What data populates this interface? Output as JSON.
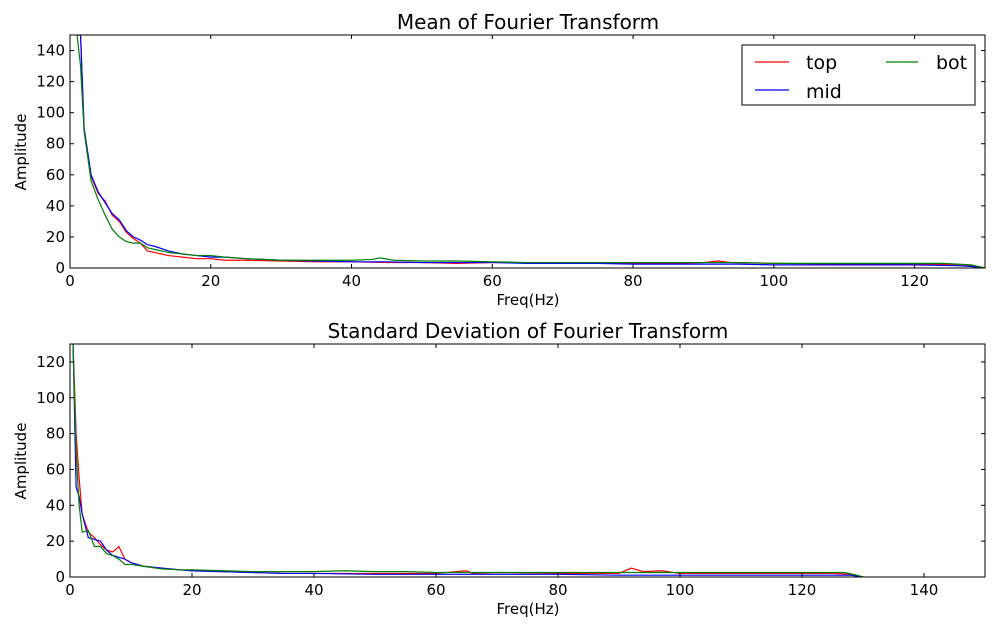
{
  "chart_data": [
    {
      "type": "line",
      "title": "Mean of Fourier Transform",
      "xlabel": "Freq(Hz)",
      "ylabel": "Amplitude",
      "xlim": [
        0,
        130
      ],
      "ylim": [
        0,
        150
      ],
      "xticks": [
        0,
        20,
        40,
        60,
        80,
        100,
        120
      ],
      "yticks": [
        0,
        20,
        40,
        60,
        80,
        100,
        120,
        140
      ],
      "grid": false,
      "legend": {
        "placement": "top-right",
        "columns": 2
      },
      "series": [
        {
          "name": "top",
          "color": "#ff0000",
          "points": [
            [
              1,
              150
            ],
            [
              1.5,
              150
            ],
            [
              2,
              90
            ],
            [
              3,
              59
            ],
            [
              4,
              48
            ],
            [
              5,
              43
            ],
            [
              6,
              34
            ],
            [
              7,
              30
            ],
            [
              8,
              23
            ],
            [
              9,
              19
            ],
            [
              10,
              16
            ],
            [
              11,
              11
            ],
            [
              12,
              10
            ],
            [
              14,
              8
            ],
            [
              16,
              7
            ],
            [
              18,
              6
            ],
            [
              20,
              6
            ],
            [
              22,
              5
            ],
            [
              25,
              5
            ],
            [
              30,
              4.5
            ],
            [
              35,
              4
            ],
            [
              40,
              4
            ],
            [
              45,
              3.5
            ],
            [
              50,
              3.5
            ],
            [
              55,
              3
            ],
            [
              60,
              3.5
            ],
            [
              65,
              3.5
            ],
            [
              70,
              3
            ],
            [
              75,
              3.5
            ],
            [
              80,
              3
            ],
            [
              85,
              3
            ],
            [
              90,
              3.5
            ],
            [
              92,
              4.5
            ],
            [
              94,
              3.5
            ],
            [
              100,
              3
            ],
            [
              110,
              2.5
            ],
            [
              120,
              2.5
            ],
            [
              126,
              2
            ],
            [
              128,
              1.5
            ],
            [
              130,
              0
            ]
          ]
        },
        {
          "name": "mid",
          "color": "#0000ff",
          "points": [
            [
              1,
              150
            ],
            [
              1.5,
              150
            ],
            [
              2,
              90
            ],
            [
              3,
              60
            ],
            [
              4,
              49
            ],
            [
              5,
              42
            ],
            [
              6,
              35
            ],
            [
              7,
              31
            ],
            [
              8,
              24
            ],
            [
              9,
              20
            ],
            [
              10,
              18
            ],
            [
              11,
              15
            ],
            [
              12,
              14
            ],
            [
              14,
              11
            ],
            [
              16,
              9
            ],
            [
              18,
              8
            ],
            [
              20,
              7
            ],
            [
              22,
              7
            ],
            [
              25,
              6
            ],
            [
              30,
              5
            ],
            [
              35,
              4.5
            ],
            [
              40,
              4
            ],
            [
              45,
              4
            ],
            [
              50,
              3.5
            ],
            [
              55,
              3.5
            ],
            [
              60,
              3.5
            ],
            [
              65,
              3
            ],
            [
              70,
              3
            ],
            [
              75,
              3
            ],
            [
              80,
              2.5
            ],
            [
              85,
              2.5
            ],
            [
              90,
              2.5
            ],
            [
              95,
              2.5
            ],
            [
              100,
              2
            ],
            [
              110,
              2
            ],
            [
              120,
              2
            ],
            [
              126,
              1.5
            ],
            [
              128,
              1
            ],
            [
              130,
              0
            ]
          ]
        },
        {
          "name": "bot",
          "color": "#008000",
          "points": [
            [
              1,
              150
            ],
            [
              1.5,
              130
            ],
            [
              2,
              88
            ],
            [
              3,
              56
            ],
            [
              4,
              44
            ],
            [
              5,
              34
            ],
            [
              6,
              25
            ],
            [
              7,
              20
            ],
            [
              8,
              17
            ],
            [
              9,
              16
            ],
            [
              10,
              16
            ],
            [
              11,
              13
            ],
            [
              12,
              12
            ],
            [
              14,
              10
            ],
            [
              16,
              9
            ],
            [
              18,
              8
            ],
            [
              20,
              8
            ],
            [
              22,
              7
            ],
            [
              25,
              6
            ],
            [
              30,
              5
            ],
            [
              35,
              5
            ],
            [
              40,
              5
            ],
            [
              43,
              5.5
            ],
            [
              44,
              6.5
            ],
            [
              46,
              5
            ],
            [
              50,
              4.5
            ],
            [
              55,
              4.5
            ],
            [
              60,
              4
            ],
            [
              65,
              3.5
            ],
            [
              70,
              3.5
            ],
            [
              75,
              3.5
            ],
            [
              80,
              3.5
            ],
            [
              85,
              3.5
            ],
            [
              90,
              3.5
            ],
            [
              95,
              3.5
            ],
            [
              100,
              3
            ],
            [
              110,
              3
            ],
            [
              120,
              3
            ],
            [
              124,
              3
            ],
            [
              126,
              2.5
            ],
            [
              128,
              2
            ],
            [
              130,
              0
            ]
          ]
        }
      ]
    },
    {
      "type": "line",
      "title": "Standard Deviation of Fourier Transform",
      "xlabel": "Freq(Hz)",
      "ylabel": "Amplitude",
      "xlim": [
        0,
        150
      ],
      "ylim": [
        0,
        130
      ],
      "xticks": [
        0,
        20,
        40,
        60,
        80,
        100,
        120,
        140
      ],
      "yticks": [
        0,
        20,
        40,
        60,
        80,
        100,
        120
      ],
      "grid": false,
      "series": [
        {
          "name": "top",
          "color": "#ff0000",
          "points": [
            [
              0.5,
              130
            ],
            [
              1,
              80
            ],
            [
              1.5,
              55
            ],
            [
              2,
              35
            ],
            [
              3,
              25
            ],
            [
              4,
              22
            ],
            [
              5,
              18
            ],
            [
              6,
              15
            ],
            [
              7,
              14
            ],
            [
              8,
              17
            ],
            [
              9,
              10
            ],
            [
              10,
              8
            ],
            [
              12,
              6
            ],
            [
              15,
              5
            ],
            [
              18,
              4
            ],
            [
              20,
              3.5
            ],
            [
              25,
              3
            ],
            [
              30,
              2.5
            ],
            [
              35,
              2
            ],
            [
              40,
              2
            ],
            [
              50,
              2
            ],
            [
              60,
              2
            ],
            [
              65,
              3.5
            ],
            [
              66,
              2
            ],
            [
              70,
              2.5
            ],
            [
              80,
              2
            ],
            [
              90,
              2
            ],
            [
              92,
              5
            ],
            [
              94,
              3
            ],
            [
              97,
              3.5
            ],
            [
              100,
              2
            ],
            [
              110,
              2
            ],
            [
              120,
              2
            ],
            [
              125,
              2
            ],
            [
              128,
              1.5
            ],
            [
              130,
              0
            ]
          ]
        },
        {
          "name": "mid",
          "color": "#0000ff",
          "points": [
            [
              0.5,
              130
            ],
            [
              1,
              50
            ],
            [
              1.5,
              45
            ],
            [
              2,
              35
            ],
            [
              3,
              22
            ],
            [
              4,
              21
            ],
            [
              5,
              20
            ],
            [
              6,
              15
            ],
            [
              7,
              12
            ],
            [
              8,
              11
            ],
            [
              9,
              10
            ],
            [
              10,
              8
            ],
            [
              12,
              6
            ],
            [
              15,
              5
            ],
            [
              18,
              4
            ],
            [
              20,
              3.5
            ],
            [
              25,
              3
            ],
            [
              30,
              2.5
            ],
            [
              35,
              2
            ],
            [
              40,
              2
            ],
            [
              50,
              1.5
            ],
            [
              60,
              1.5
            ],
            [
              70,
              1.5
            ],
            [
              80,
              1.5
            ],
            [
              90,
              1
            ],
            [
              100,
              1
            ],
            [
              110,
              1
            ],
            [
              120,
              1
            ],
            [
              125,
              1
            ],
            [
              128,
              1
            ],
            [
              130,
              0
            ]
          ]
        },
        {
          "name": "bot",
          "color": "#008000",
          "points": [
            [
              0.5,
              130
            ],
            [
              1,
              70
            ],
            [
              1.5,
              40
            ],
            [
              2,
              25
            ],
            [
              3,
              26
            ],
            [
              4,
              17
            ],
            [
              5,
              17
            ],
            [
              6,
              13
            ],
            [
              7,
              12
            ],
            [
              8,
              10
            ],
            [
              9,
              7
            ],
            [
              10,
              7
            ],
            [
              12,
              6
            ],
            [
              15,
              4.5
            ],
            [
              18,
              4
            ],
            [
              20,
              4
            ],
            [
              25,
              3.5
            ],
            [
              30,
              3
            ],
            [
              35,
              3
            ],
            [
              40,
              3
            ],
            [
              45,
              3.5
            ],
            [
              50,
              3
            ],
            [
              55,
              3
            ],
            [
              60,
              2.5
            ],
            [
              65,
              2.5
            ],
            [
              70,
              2.5
            ],
            [
              75,
              2.5
            ],
            [
              80,
              2.5
            ],
            [
              85,
              2.5
            ],
            [
              90,
              2.5
            ],
            [
              100,
              2.5
            ],
            [
              110,
              2.5
            ],
            [
              120,
              2.5
            ],
            [
              127,
              2.5
            ],
            [
              129,
              1
            ],
            [
              130,
              0
            ]
          ]
        }
      ]
    }
  ]
}
